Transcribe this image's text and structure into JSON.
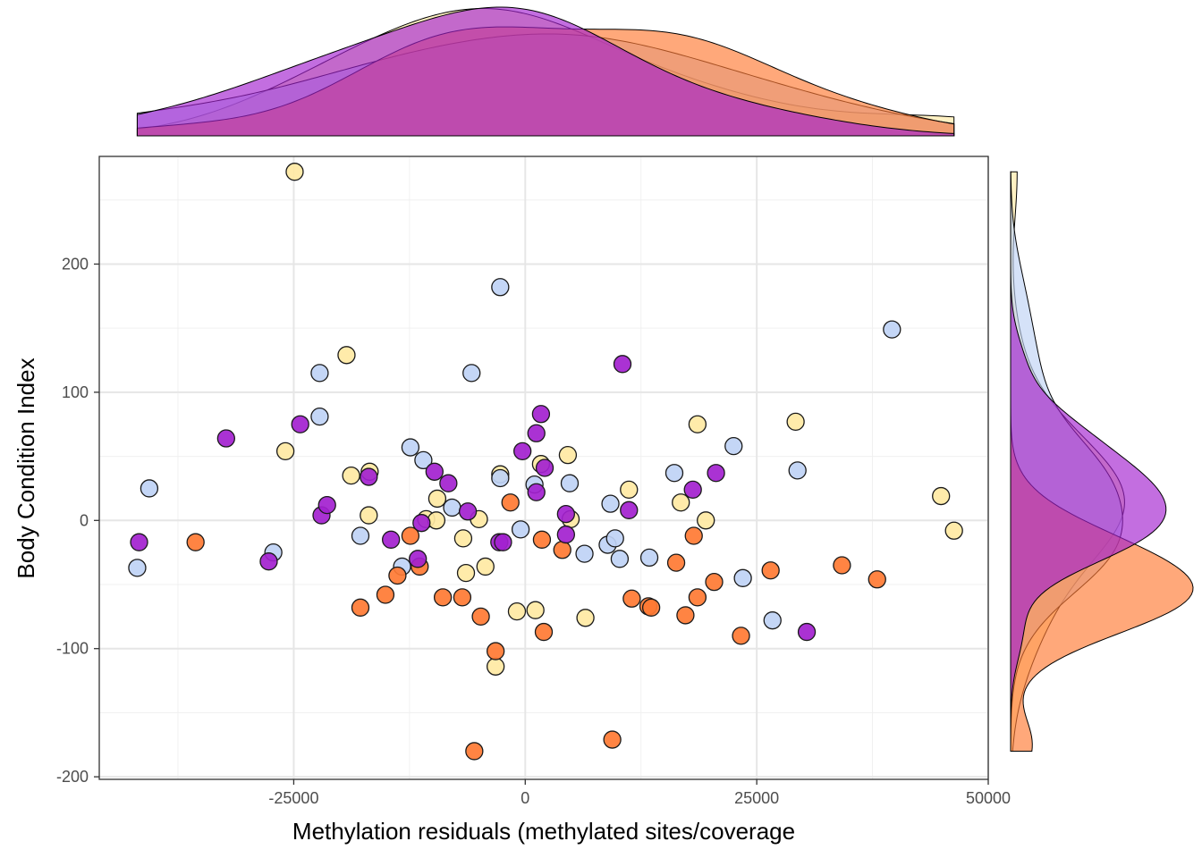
{
  "chart_data": {
    "type": "scatter",
    "title": "",
    "xlabel": "Methylation residuals (methylated sites/coverage",
    "ylabel": "Body Condition Index",
    "xlim": [
      -46000,
      50000
    ],
    "ylim": [
      -202,
      284
    ],
    "xticks": [
      -25000,
      0,
      25000,
      50000
    ],
    "yticks": [
      -200,
      -100,
      0,
      100,
      200
    ],
    "xtick_labels": [
      "-25000",
      "0",
      "25000",
      "50000"
    ],
    "ytick_labels": [
      "-200",
      "-100",
      "0",
      "100",
      "200"
    ],
    "grid": true,
    "legend": "none",
    "marginal_plots": "density (top: x, right: y)",
    "series": [
      {
        "color": "#FFE9A3",
        "points": [
          [
            -24900,
            272
          ],
          [
            -19300,
            129
          ],
          [
            -25900,
            54
          ],
          [
            -18800,
            35
          ],
          [
            -16800,
            38
          ],
          [
            -16900,
            4
          ],
          [
            -10700,
            1
          ],
          [
            -9500,
            17
          ],
          [
            -9600,
            0
          ],
          [
            -6700,
            -14
          ],
          [
            -6400,
            -41
          ],
          [
            -5000,
            1
          ],
          [
            -4300,
            -36
          ],
          [
            -2700,
            36
          ],
          [
            -3200,
            -114
          ],
          [
            -900,
            -71
          ],
          [
            1100,
            -70
          ],
          [
            1700,
            44
          ],
          [
            4600,
            51
          ],
          [
            4900,
            1
          ],
          [
            6500,
            -76
          ],
          [
            11200,
            24
          ],
          [
            16800,
            14
          ],
          [
            18600,
            75
          ],
          [
            19500,
            0
          ],
          [
            29200,
            77
          ],
          [
            44900,
            19
          ],
          [
            46300,
            -8
          ]
        ]
      },
      {
        "color": "#BFD3F5",
        "points": [
          [
            -40600,
            25
          ],
          [
            -41900,
            -37
          ],
          [
            -27200,
            -25
          ],
          [
            -22200,
            115
          ],
          [
            -22200,
            81
          ],
          [
            -17800,
            -12
          ],
          [
            -12400,
            57
          ],
          [
            -11000,
            47
          ],
          [
            -13300,
            -36
          ],
          [
            -7900,
            10
          ],
          [
            -5800,
            115
          ],
          [
            -2700,
            182
          ],
          [
            -2700,
            33
          ],
          [
            -500,
            -7
          ],
          [
            1000,
            28
          ],
          [
            4800,
            29
          ],
          [
            6400,
            -26
          ],
          [
            9200,
            13
          ],
          [
            8900,
            -19
          ],
          [
            9700,
            -14
          ],
          [
            10200,
            -30
          ],
          [
            13400,
            -29
          ],
          [
            16100,
            37
          ],
          [
            22500,
            58
          ],
          [
            23500,
            -45
          ],
          [
            26700,
            -78
          ],
          [
            29400,
            39
          ],
          [
            39600,
            149
          ]
        ]
      },
      {
        "color": "#FF7A33",
        "points": [
          [
            -35600,
            -17
          ],
          [
            -17800,
            -68
          ],
          [
            -15100,
            -58
          ],
          [
            -13800,
            -43
          ],
          [
            -12400,
            -12
          ],
          [
            -11400,
            -36
          ],
          [
            -8900,
            -60
          ],
          [
            -6800,
            -60
          ],
          [
            -4800,
            -75
          ],
          [
            -5500,
            -180
          ],
          [
            -3200,
            -102
          ],
          [
            -1600,
            14
          ],
          [
            1800,
            -15
          ],
          [
            2000,
            -87
          ],
          [
            4000,
            -23
          ],
          [
            9400,
            -171
          ],
          [
            11500,
            -61
          ],
          [
            13300,
            -67
          ],
          [
            13600,
            -68
          ],
          [
            17300,
            -74
          ],
          [
            18600,
            -60
          ],
          [
            16300,
            -33
          ],
          [
            18200,
            -12
          ],
          [
            20400,
            -48
          ],
          [
            23300,
            -90
          ],
          [
            26500,
            -39
          ],
          [
            34200,
            -35
          ],
          [
            38000,
            -46
          ]
        ]
      },
      {
        "color": "#A321CF",
        "points": [
          [
            -41700,
            -17
          ],
          [
            -32300,
            64
          ],
          [
            -24300,
            75
          ],
          [
            -27700,
            -32
          ],
          [
            -22000,
            4
          ],
          [
            -21400,
            12
          ],
          [
            -16900,
            34
          ],
          [
            -14500,
            -15
          ],
          [
            -11200,
            -2
          ],
          [
            -11600,
            -30
          ],
          [
            -9800,
            38
          ],
          [
            -8300,
            29
          ],
          [
            -6200,
            7
          ],
          [
            -2800,
            -17
          ],
          [
            -2400,
            -17
          ],
          [
            -300,
            54
          ],
          [
            1200,
            22
          ],
          [
            1200,
            68
          ],
          [
            1700,
            83
          ],
          [
            2100,
            41
          ],
          [
            4400,
            5
          ],
          [
            4400,
            -11
          ],
          [
            10500,
            122
          ],
          [
            11200,
            8
          ],
          [
            18100,
            24
          ],
          [
            20600,
            37
          ],
          [
            30400,
            -87
          ]
        ]
      }
    ]
  }
}
